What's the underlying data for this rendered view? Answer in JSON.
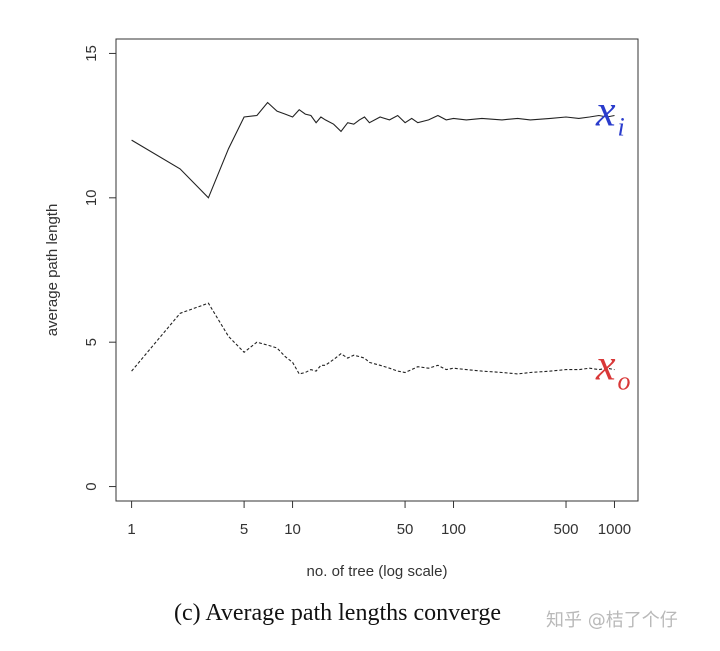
{
  "chart_data": {
    "type": "line",
    "title": "",
    "xlabel": "no. of tree (log scale)",
    "ylabel": "average path length",
    "x_scale": "log",
    "xlim": [
      0.8,
      1400
    ],
    "ylim": [
      -0.5,
      15.5
    ],
    "x_ticks": [
      1,
      5,
      10,
      50,
      100,
      500,
      1000
    ],
    "y_ticks": [
      0,
      5,
      10,
      15
    ],
    "grid": false,
    "series": [
      {
        "name": "x",
        "subscript": "i",
        "color": "#2a3ccc",
        "line_style": "solid",
        "x": [
          1,
          2,
          3,
          4,
          5,
          6,
          7,
          8,
          9,
          10,
          11,
          12,
          13,
          14,
          15,
          16,
          18,
          20,
          22,
          24,
          26,
          28,
          30,
          35,
          40,
          45,
          50,
          55,
          60,
          70,
          80,
          90,
          100,
          120,
          150,
          200,
          250,
          300,
          400,
          500,
          600,
          700,
          800,
          900,
          1000
        ],
        "y": [
          12.0,
          11.0,
          10.0,
          11.7,
          12.8,
          12.85,
          13.3,
          13.0,
          12.9,
          12.8,
          13.05,
          12.9,
          12.85,
          12.6,
          12.8,
          12.7,
          12.55,
          12.3,
          12.6,
          12.55,
          12.7,
          12.8,
          12.6,
          12.8,
          12.7,
          12.85,
          12.6,
          12.75,
          12.6,
          12.7,
          12.85,
          12.7,
          12.75,
          12.7,
          12.75,
          12.7,
          12.75,
          12.7,
          12.75,
          12.8,
          12.75,
          12.8,
          12.85,
          12.8,
          12.85
        ]
      },
      {
        "name": "x",
        "subscript": "o",
        "color": "#d93838",
        "line_style": "dashed",
        "x": [
          1,
          2,
          3,
          4,
          5,
          6,
          7,
          8,
          9,
          10,
          11,
          12,
          13,
          14,
          15,
          16,
          18,
          20,
          22,
          24,
          26,
          28,
          30,
          35,
          40,
          45,
          50,
          55,
          60,
          70,
          80,
          90,
          100,
          120,
          150,
          200,
          250,
          300,
          400,
          500,
          600,
          700,
          800,
          900,
          1000
        ],
        "y": [
          4.0,
          6.0,
          6.35,
          5.2,
          4.65,
          5.0,
          4.9,
          4.8,
          4.5,
          4.3,
          3.9,
          3.95,
          4.05,
          4.0,
          4.2,
          4.2,
          4.4,
          4.6,
          4.45,
          4.55,
          4.5,
          4.45,
          4.3,
          4.2,
          4.1,
          4.0,
          3.95,
          4.05,
          4.15,
          4.1,
          4.2,
          4.05,
          4.1,
          4.05,
          4.0,
          3.95,
          3.9,
          3.95,
          4.0,
          4.05,
          4.05,
          4.1,
          4.05,
          4.1,
          4.05
        ]
      }
    ]
  },
  "caption": "(c) Average path lengths converge",
  "watermark": "知乎 @桔了个仔"
}
